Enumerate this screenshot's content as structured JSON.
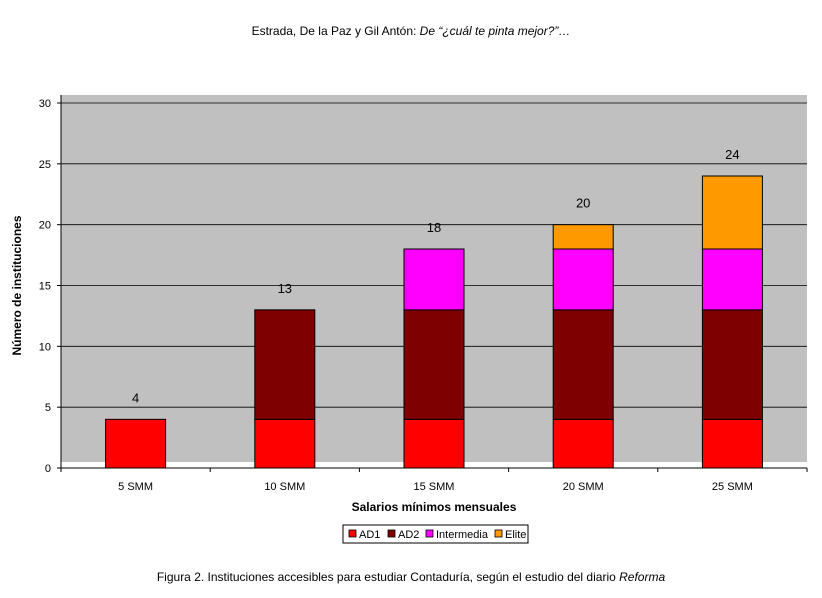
{
  "header": {
    "authors": "Estrada, De la Paz y Gil Antón:",
    "title_italic": "De “¿cuál te pinta mejor?”…"
  },
  "caption": {
    "text": "Figura 2. Instituciones accesibles para estudiar Contaduría, según el estudio del diario",
    "italic": "Reforma"
  },
  "chart_data": {
    "type": "bar",
    "stacked": true,
    "categories": [
      "5 SMM",
      "10 SMM",
      "15 SMM",
      "20 SMM",
      "25 SMM"
    ],
    "series": [
      {
        "name": "AD1",
        "color": "#ff0000",
        "values": [
          4,
          4,
          4,
          4,
          4
        ]
      },
      {
        "name": "AD2",
        "color": "#7f0000",
        "values": [
          0,
          9,
          9,
          9,
          9
        ]
      },
      {
        "name": "Intermedia",
        "color": "#ff00ff",
        "values": [
          0,
          0,
          5,
          5,
          5
        ]
      },
      {
        "name": "Elite",
        "color": "#ff9900",
        "values": [
          0,
          0,
          0,
          2,
          6
        ]
      }
    ],
    "totals": [
      4,
      13,
      18,
      20,
      24
    ],
    "xlabel": "Salarios mínimos mensuales",
    "ylabel": "Número de instituciones",
    "ylim": [
      0,
      30
    ],
    "yticks": [
      0,
      5,
      10,
      15,
      20,
      25,
      30
    ],
    "grid": true,
    "plot_background": "#c0c0c0",
    "legend_position": "bottom"
  }
}
